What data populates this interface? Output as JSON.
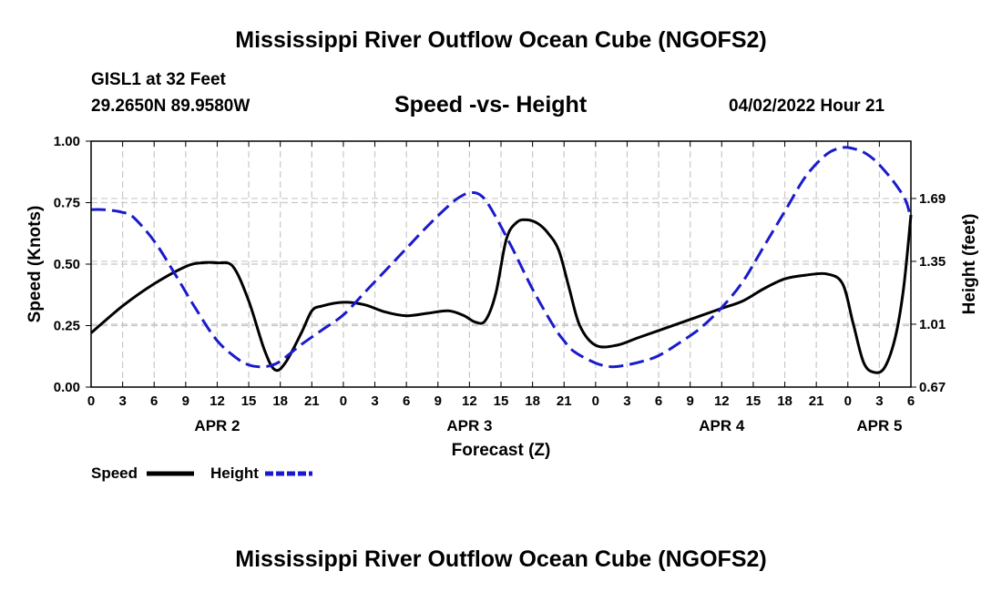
{
  "page": {
    "title": "Mississippi River Outflow Ocean Cube (NGOFS2)",
    "station": "GISL1 at 32 Feet",
    "coords": "29.2650N  89.9580W",
    "subtitle": "Speed -vs- Height",
    "date": "04/02/2022 Hour 21",
    "footer_title": "Mississippi River Outflow Ocean Cube (NGOFS2)"
  },
  "chart_data": {
    "type": "line",
    "title": "Speed -vs- Height",
    "xlabel": "Forecast (Z)",
    "ylabel": "Speed (Knots)",
    "y2label": "Height (feet)",
    "xlim": [
      0,
      78
    ],
    "ylim": [
      0,
      1
    ],
    "y2lim": [
      0.67,
      2.0
    ],
    "x_tick_values": [
      0,
      3,
      6,
      9,
      12,
      15,
      18,
      21,
      24,
      27,
      30,
      33,
      36,
      39,
      42,
      45,
      48,
      51,
      54,
      57,
      60,
      63,
      66,
      69,
      72,
      75,
      78
    ],
    "x_tick_labels": [
      "0",
      "3",
      "6",
      "9",
      "12",
      "15",
      "18",
      "21",
      "0",
      "3",
      "6",
      "9",
      "12",
      "15",
      "18",
      "21",
      "0",
      "3",
      "6",
      "9",
      "12",
      "15",
      "18",
      "21",
      "0",
      "3",
      "6"
    ],
    "day_labels": [
      {
        "x": 12,
        "label": "APR 2"
      },
      {
        "x": 36,
        "label": "APR 3"
      },
      {
        "x": 60,
        "label": "APR 4"
      },
      {
        "x": 75,
        "label": "APR 5"
      }
    ],
    "y_ticks": [
      "0.00",
      "0.25",
      "0.50",
      "0.75",
      "1.00"
    ],
    "y2_ticks": [
      "0.67",
      "1.01",
      "1.35",
      "1.69"
    ],
    "grid": true,
    "legend": {
      "position": "bottom-left",
      "entries": [
        "Speed",
        "Height"
      ]
    },
    "colors": {
      "speed": "#000000",
      "height": "#1a1acc",
      "grid": "#c8c8c8"
    },
    "series": [
      {
        "name": "Speed",
        "axis": "left",
        "x": [
          0,
          3,
          6,
          9,
          10.5,
          12,
          13.5,
          15,
          16.5,
          17.5,
          18.5,
          20,
          21,
          22,
          24,
          26,
          28,
          30,
          32,
          34,
          35.5,
          36.5,
          37.5,
          38.5,
          39.5,
          40.5,
          41.5,
          42.5,
          43.5,
          44.5,
          45.5,
          46.5,
          48,
          50,
          52,
          54,
          56,
          58,
          60,
          62,
          64,
          66,
          68,
          70,
          71.5,
          72.5,
          73.5,
          74.5,
          75.5,
          76.5,
          77.3,
          78
        ],
        "y": [
          0.22,
          0.33,
          0.42,
          0.49,
          0.505,
          0.505,
          0.49,
          0.35,
          0.15,
          0.07,
          0.1,
          0.22,
          0.31,
          0.33,
          0.345,
          0.335,
          0.305,
          0.29,
          0.3,
          0.31,
          0.29,
          0.265,
          0.27,
          0.38,
          0.6,
          0.67,
          0.68,
          0.665,
          0.625,
          0.555,
          0.4,
          0.25,
          0.17,
          0.17,
          0.2,
          0.23,
          0.26,
          0.29,
          0.32,
          0.35,
          0.4,
          0.44,
          0.455,
          0.46,
          0.42,
          0.26,
          0.1,
          0.06,
          0.08,
          0.2,
          0.4,
          0.7
        ]
      },
      {
        "name": "Height",
        "axis": "right",
        "x": [
          0,
          1,
          2,
          3,
          4,
          6,
          8,
          10,
          12,
          14,
          15,
          16,
          17,
          18,
          20,
          22,
          24,
          26,
          28,
          30,
          32,
          34,
          35,
          36,
          37,
          38,
          40,
          42,
          44,
          45,
          46,
          48,
          49.5,
          51,
          52.5,
          54,
          56,
          58,
          60,
          62,
          64,
          66,
          68,
          70,
          71.5,
          72.5,
          73.5,
          74.5,
          75.5,
          76.5,
          77.5,
          78
        ],
        "y": [
          1.63,
          1.63,
          1.625,
          1.615,
          1.59,
          1.46,
          1.28,
          1.09,
          0.92,
          0.82,
          0.79,
          0.78,
          0.785,
          0.81,
          0.9,
          0.98,
          1.06,
          1.18,
          1.3,
          1.42,
          1.54,
          1.65,
          1.695,
          1.72,
          1.71,
          1.64,
          1.43,
          1.2,
          1.0,
          0.92,
          0.86,
          0.8,
          0.78,
          0.79,
          0.81,
          0.84,
          0.91,
          0.99,
          1.1,
          1.24,
          1.43,
          1.62,
          1.81,
          1.93,
          1.965,
          1.96,
          1.94,
          1.9,
          1.84,
          1.77,
          1.68,
          1.58
        ]
      }
    ]
  }
}
